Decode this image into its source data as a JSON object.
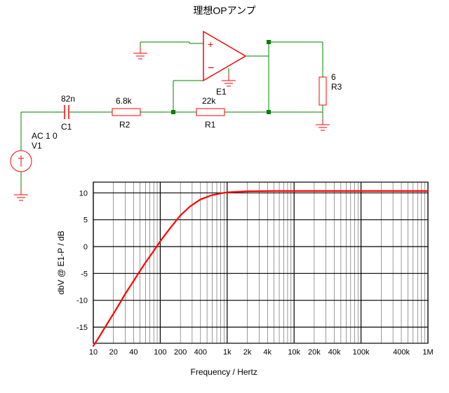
{
  "title": "理想OPアンプ",
  "circuit": {
    "wire_color": "#008000",
    "component_color": "#ff0000",
    "node_color": "#008000",
    "text_color": "#000000",
    "components": {
      "C1": {
        "name": "C1",
        "value": "82n"
      },
      "R1": {
        "name": "R1",
        "value": "22k"
      },
      "R2": {
        "name": "R2",
        "value": "6.8k"
      },
      "R3": {
        "name": "R3",
        "value": "6"
      },
      "E1": {
        "name": "E1"
      },
      "V1": {
        "name": "V1",
        "value": "AC 1 0"
      }
    }
  },
  "chart": {
    "type": "line",
    "ylabel": "dbV @ E1-P / dB",
    "xlabel": "Frequency / Hertz",
    "line_color": "#ff0000",
    "grid_color": "#000000",
    "background": "#ffffff",
    "axis_fontsize": 11,
    "label_fontsize": 12,
    "xmin": 10,
    "xmax": 1000000,
    "xticks": [
      10,
      20,
      40,
      100,
      200,
      400,
      1000,
      2000,
      4000,
      10000,
      20000,
      40000,
      100000,
      400000,
      1000000
    ],
    "xtick_labels": [
      "10",
      "20",
      "40",
      "100",
      "200",
      "400",
      "1k",
      "2k",
      "4k",
      "10k",
      "20k",
      "40k",
      "100k",
      "400k",
      "1M"
    ],
    "ymin": -18,
    "ymax": 12,
    "yticks": [
      -15,
      -10,
      -5,
      0,
      5,
      10
    ],
    "ytick_labels": [
      "-15",
      "-10",
      "-5",
      "0",
      "5",
      "10"
    ],
    "data": [
      {
        "f": 10,
        "db": -18.5
      },
      {
        "f": 12,
        "db": -17.0
      },
      {
        "f": 15,
        "db": -15.0
      },
      {
        "f": 20,
        "db": -12.5
      },
      {
        "f": 25,
        "db": -10.5
      },
      {
        "f": 30,
        "db": -8.8
      },
      {
        "f": 40,
        "db": -6.4
      },
      {
        "f": 50,
        "db": -4.5
      },
      {
        "f": 60,
        "db": -3.0
      },
      {
        "f": 80,
        "db": -0.8
      },
      {
        "f": 100,
        "db": 1.0
      },
      {
        "f": 140,
        "db": 3.4
      },
      {
        "f": 200,
        "db": 5.8
      },
      {
        "f": 280,
        "db": 7.5
      },
      {
        "f": 400,
        "db": 8.8
      },
      {
        "f": 600,
        "db": 9.6
      },
      {
        "f": 800,
        "db": 9.9
      },
      {
        "f": 1000,
        "db": 10.1
      },
      {
        "f": 2000,
        "db": 10.3
      },
      {
        "f": 5000,
        "db": 10.35
      },
      {
        "f": 10000,
        "db": 10.35
      },
      {
        "f": 50000,
        "db": 10.35
      },
      {
        "f": 1000000,
        "db": 10.35
      }
    ]
  }
}
